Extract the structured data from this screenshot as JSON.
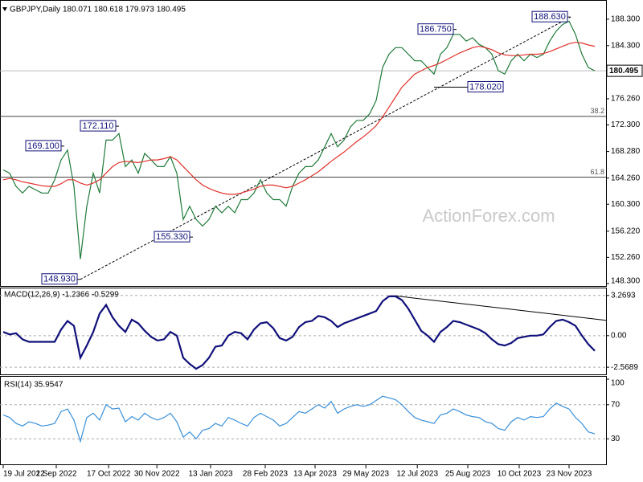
{
  "chart_data": [
    {
      "type": "line",
      "title": "GBPJPY,Daily  180.071 180.618 179.973 180.495",
      "watermark": "ActionForex.com",
      "xlim": [
        -0.5,
        93.75
      ],
      "ylim": [
        148.05,
        190.6
      ],
      "grid": false,
      "yticks": [
        {
          "value": 148.3,
          "label": "148.300"
        },
        {
          "value": 152.26,
          "label": "152.260"
        },
        {
          "value": 156.22,
          "label": "156.220"
        },
        {
          "value": 160.3,
          "label": "160.300"
        },
        {
          "value": 164.26,
          "label": "164.260"
        },
        {
          "value": 168.28,
          "label": "168.280"
        },
        {
          "value": 172.3,
          "label": "172.300"
        },
        {
          "value": 176.26,
          "label": "176.260"
        },
        {
          "value": 184.3,
          "label": "184.300"
        },
        {
          "value": 188.3,
          "label": "188.300"
        }
      ],
      "last_price": 180.495,
      "series": [
        {
          "name": "GBPJPY",
          "color": "#1f7a3a",
          "values": [
            165.5,
            165,
            163,
            162,
            163,
            162.5,
            162,
            162,
            164,
            167,
            168.5,
            163,
            152,
            160,
            165,
            162,
            170,
            170,
            171,
            166,
            167,
            165,
            168,
            167,
            166,
            166,
            167.5,
            165,
            158,
            160,
            158,
            157,
            158,
            160,
            159,
            160,
            159,
            161,
            161,
            162,
            164,
            162,
            161,
            161,
            160,
            163,
            165,
            166,
            166,
            167,
            169,
            171,
            169,
            170,
            172,
            173,
            173,
            174,
            176,
            181,
            183,
            184,
            184,
            183,
            182,
            182,
            181,
            180,
            183,
            184,
            186,
            186,
            185,
            185.5,
            184.5,
            184,
            183,
            180.5,
            180,
            182,
            183,
            182,
            183,
            182.5,
            183,
            185,
            186.5,
            187.5,
            188,
            186,
            183,
            181,
            180.495
          ]
        },
        {
          "name": "MA",
          "color": "#e0302a",
          "values": [
            164,
            164.2,
            164,
            163.7,
            163.5,
            163.3,
            163.1,
            163,
            163,
            163.4,
            164,
            164,
            163.5,
            163.2,
            163.5,
            164,
            165,
            166,
            166.6,
            166.8,
            166.7,
            166.6,
            166.8,
            167,
            167,
            167.2,
            167.5,
            167,
            166,
            165,
            164,
            163.2,
            162.7,
            162.3,
            162,
            161.8,
            161.8,
            162,
            162.3,
            162.6,
            163,
            163.2,
            163.2,
            163,
            162.8,
            163,
            163.5,
            164,
            164.6,
            165.2,
            166,
            166.8,
            167.5,
            168.2,
            169,
            169.8,
            170.5,
            171.3,
            172.2,
            173.5,
            175,
            176.5,
            178,
            179,
            180,
            180.5,
            181,
            181.3,
            181.7,
            182.2,
            182.7,
            183.2,
            183.6,
            184,
            184.2,
            184,
            183.7,
            183.2,
            182.9,
            182.8,
            182.8,
            182.9,
            183,
            183,
            183.1,
            183.4,
            183.8,
            184.2,
            184.6,
            184.8,
            184.7,
            184.4,
            184.2
          ]
        }
      ],
      "levels": [
        {
          "value": 173.6,
          "label": "38.2"
        },
        {
          "value": 164.4,
          "label": "61.8"
        }
      ],
      "annotations": [
        {
          "x": 9.5,
          "value": 169.1,
          "label": "169.100"
        },
        {
          "x": 18,
          "value": 172.11,
          "label": "172.110"
        },
        {
          "x": 12,
          "value": 148.93,
          "label": "148.930"
        },
        {
          "x": 29.5,
          "value": 155.33,
          "label": "155.330"
        },
        {
          "x": 70.5,
          "value": 186.75,
          "label": "186.750"
        },
        {
          "x": 67,
          "value": 178.02,
          "label": "178.020"
        },
        {
          "x": 88.25,
          "value": 188.63,
          "label": "188.630"
        }
      ],
      "trendline": {
        "x": [
          12,
          88.25
        ],
        "y": [
          148.93,
          188.63
        ]
      }
    },
    {
      "type": "line",
      "title": "MACD(12,26,9) -1.2366 -0.5299",
      "xlim": [
        -0.5,
        93.75
      ],
      "ylim": [
        -3.15,
        3.78
      ],
      "grid": true,
      "yticks": [
        -2.5689,
        {
          "value": 0,
          "label": "0.00"
        },
        3.2693
      ],
      "series": [
        {
          "name": "MACD",
          "color": "#10107a",
          "values": [
            0.3,
            0.1,
            0.2,
            -0.3,
            -0.5,
            -0.5,
            -0.5,
            -0.5,
            -0.5,
            0.5,
            1.2,
            0.8,
            -1.8,
            -0.8,
            0.3,
            1.8,
            2.5,
            1.5,
            0.8,
            0.3,
            1.3,
            1.0,
            0.4,
            -0.1,
            -0.4,
            -0.3,
            0.3,
            0,
            -1.8,
            -2.3,
            -2.7,
            -2.4,
            -1.8,
            -0.9,
            -0.8,
            0,
            0.3,
            0.2,
            -0.3,
            0.5,
            1.0,
            1.1,
            0.6,
            -0.2,
            -0.4,
            -0.1,
            0.7,
            1.1,
            1.2,
            1.6,
            1.5,
            1.2,
            0.7,
            1.0,
            1.2,
            1.4,
            1.6,
            1.8,
            2.0,
            2.8,
            3.2,
            3.2,
            2.9,
            2.2,
            1.3,
            0.4,
            0,
            -0.5,
            0.3,
            0.7,
            1.2,
            1.1,
            0.9,
            0.7,
            0.5,
            0.2,
            -0.3,
            -0.7,
            -0.8,
            -0.6,
            -0.2,
            -0.1,
            0,
            0,
            0.1,
            0.7,
            1.2,
            1.3,
            1.1,
            0.8,
            0,
            -0.7,
            -1.2366
          ]
        }
      ],
      "trendline": {
        "x": [
          60.75,
          93.75
        ],
        "y": [
          3.25,
          1.25
        ]
      }
    },
    {
      "type": "line",
      "title": "RSI(14) 35.9547",
      "xlim": [
        -0.5,
        93.75
      ],
      "ylim": [
        0,
        100
      ],
      "grid": true,
      "yticks": [
        30,
        70,
        100
      ],
      "xticks": [
        {
          "value": 0,
          "label": "19 Jul 2022"
        },
        {
          "value": 8.25,
          "label": "1 Sep 2022"
        },
        {
          "value": 16.4,
          "label": "17 Oct 2022"
        },
        {
          "value": 23.9,
          "label": "30 Nov 2022"
        },
        {
          "value": 32.25,
          "label": "13 Jan 2023"
        },
        {
          "value": 40.75,
          "label": "28 Feb 2023"
        },
        {
          "value": 48.5,
          "label": "13 Apr 2023"
        },
        {
          "value": 56.4,
          "label": "29 May 2023"
        },
        {
          "value": 64.4,
          "label": "12 Jul 2023"
        },
        {
          "value": 72.25,
          "label": "25 Aug 2023"
        },
        {
          "value": 80.25,
          "label": "10 Oct 2023"
        },
        {
          "value": 88,
          "label": "23 Nov 2023"
        }
      ],
      "series": [
        {
          "name": "RSI",
          "color": "#3a8fd8",
          "values": [
            58,
            55,
            48,
            45,
            50,
            48,
            45,
            46,
            48,
            62,
            65,
            52,
            27,
            55,
            60,
            52,
            70,
            65,
            66,
            50,
            56,
            52,
            60,
            55,
            52,
            55,
            60,
            50,
            32,
            38,
            30,
            40,
            42,
            48,
            45,
            55,
            52,
            48,
            45,
            55,
            60,
            56,
            52,
            45,
            48,
            55,
            62,
            60,
            65,
            70,
            66,
            74,
            60,
            65,
            68,
            70,
            68,
            70,
            75,
            80,
            78,
            76,
            70,
            62,
            55,
            52,
            50,
            48,
            58,
            60,
            65,
            62,
            58,
            56,
            55,
            50,
            48,
            42,
            40,
            50,
            55,
            52,
            56,
            55,
            56,
            65,
            72,
            68,
            65,
            55,
            48,
            38,
            35.9547
          ]
        }
      ]
    }
  ]
}
